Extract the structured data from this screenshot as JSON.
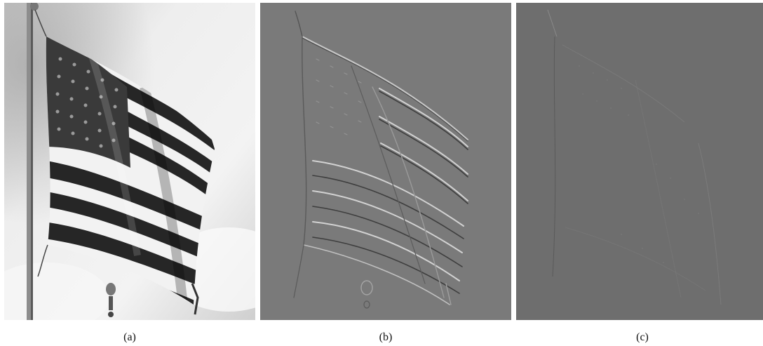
{
  "figure": {
    "panels": [
      {
        "caption": "(a)",
        "content": "photo"
      },
      {
        "caption": "(b)",
        "content": "emboss-edges"
      },
      {
        "caption": "(c)",
        "content": "residual"
      }
    ]
  },
  "colors": {
    "background": "#ffffff",
    "sky_light": "#e9e9e9",
    "sky_dark": "#b9b9b9",
    "stripe_dark": "#2c2c2c",
    "stripe_light": "#f4f4f4",
    "canton": "#3a3a3a",
    "emboss_gray": "#7a7a7a",
    "residual_gray": "#6e6e6e"
  }
}
